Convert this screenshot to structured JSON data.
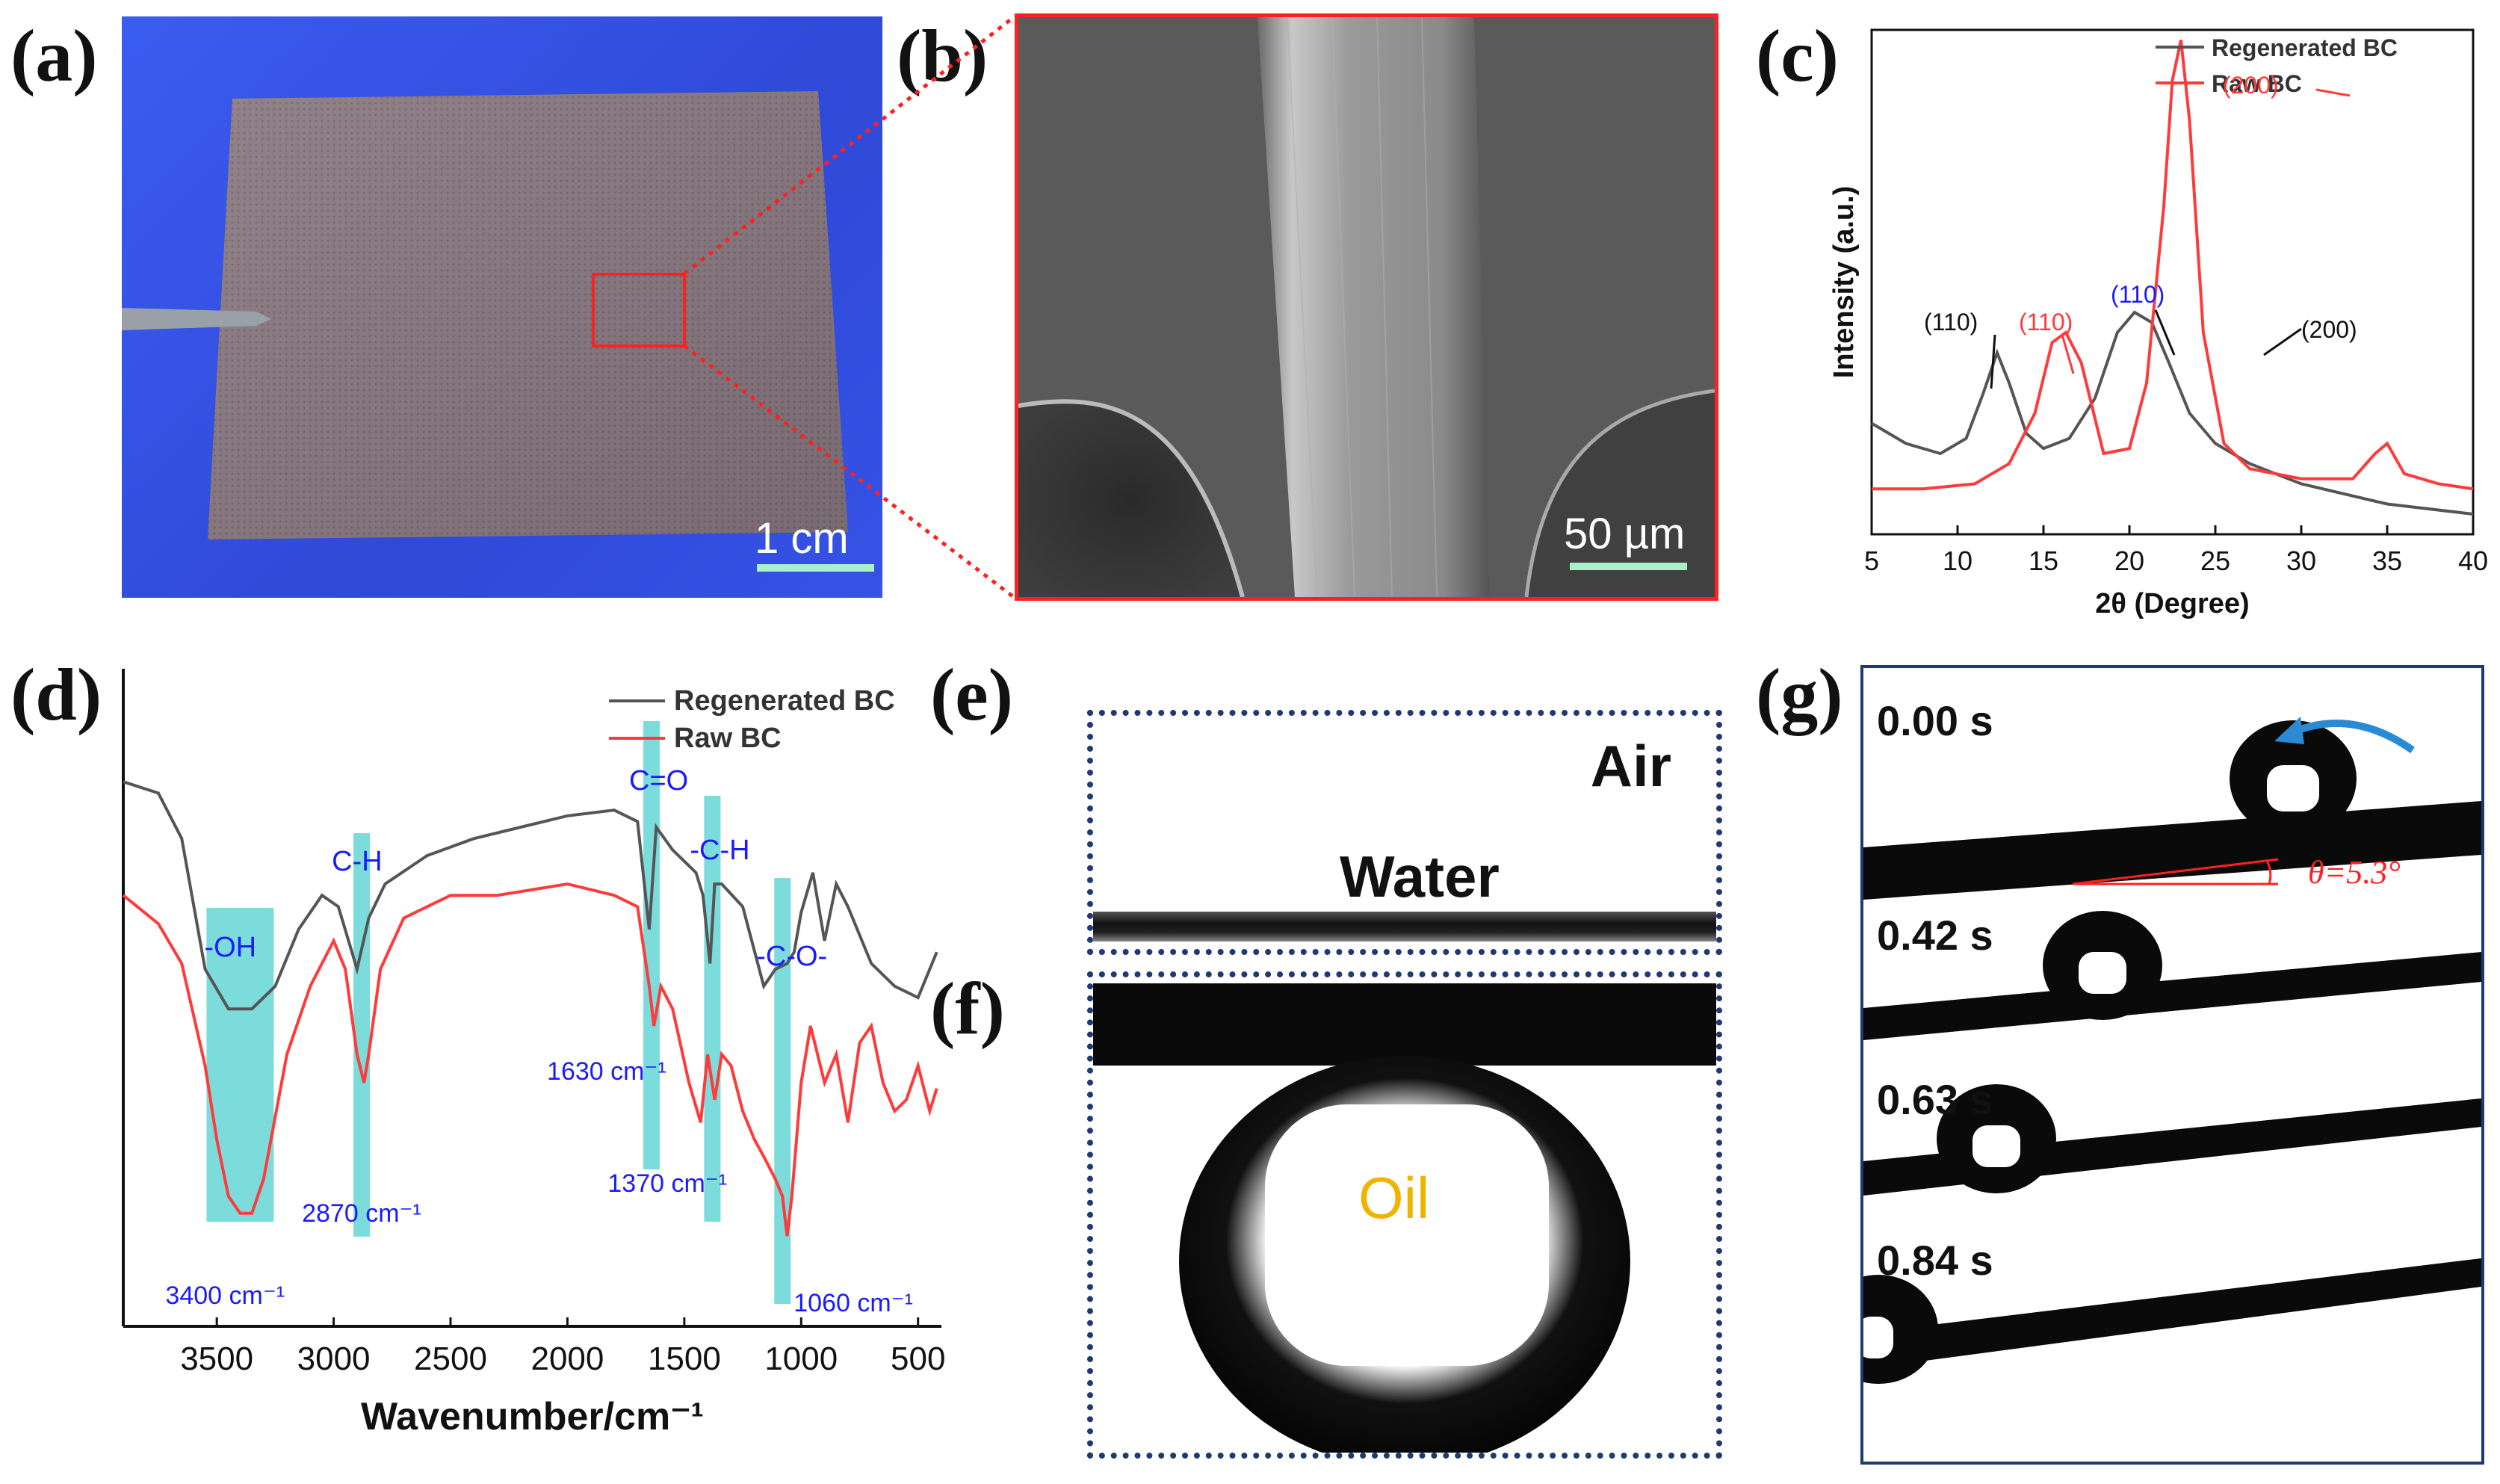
{
  "panels": {
    "a": {
      "label": "(a)",
      "scale_bar": "1 cm"
    },
    "b": {
      "label": "(b)",
      "scale_bar": "50 µm"
    },
    "c": {
      "label": "(c)"
    },
    "d": {
      "label": "(d)"
    },
    "e": {
      "label": "(e)",
      "air": "Air",
      "water": "Water"
    },
    "f": {
      "label": "(f)",
      "oil": "Oil"
    },
    "g": {
      "label": "(g)",
      "times": [
        "0.00 s",
        "0.42 s",
        "0.63 s",
        "0.84 s"
      ],
      "angle": "θ=5.3°"
    }
  },
  "colors": {
    "regenerated": "#555555",
    "raw": "#ff3a3a",
    "band": "#4fd0cf",
    "annot_blue": "#1a1aff",
    "frame_blue": "#1f3a73",
    "oil": "#f0b400",
    "sky": "#2f4fe0"
  },
  "chart_data": [
    {
      "type": "line",
      "id": "xrd",
      "title": "",
      "xlabel": "2θ (Degree)",
      "ylabel": "Intensity (a.u.)",
      "xlim": [
        5,
        40
      ],
      "ylim": [
        0,
        100
      ],
      "xticks": [
        5,
        10,
        15,
        20,
        25,
        30,
        35,
        40
      ],
      "legend": [
        "Regenerated BC",
        "Raw BC"
      ],
      "series": [
        {
          "name": "Regenerated BC",
          "x": [
            5,
            7,
            9,
            10.5,
            11.5,
            12.3,
            13,
            14,
            15,
            16.5,
            18,
            19.3,
            20.3,
            21.3,
            22.3,
            23.5,
            25,
            27,
            30,
            35,
            40
          ],
          "y": [
            22,
            18,
            16,
            19,
            28,
            36,
            30,
            20,
            17,
            19,
            27,
            40,
            44,
            42,
            34,
            24,
            18,
            14,
            10,
            6,
            4
          ]
        },
        {
          "name": "Raw BC",
          "x": [
            5,
            8,
            11,
            13,
            14.5,
            15.5,
            16.3,
            17.2,
            18.5,
            20,
            21,
            22,
            22.5,
            23,
            23.5,
            24.3,
            25.5,
            27,
            30,
            33,
            34.3,
            35,
            36,
            38,
            40
          ],
          "y": [
            9,
            9,
            10,
            14,
            24,
            38,
            40,
            34,
            16,
            17,
            30,
            65,
            90,
            98,
            82,
            40,
            18,
            13,
            11,
            11,
            16,
            18,
            12,
            10,
            9
          ]
        }
      ],
      "annotations": [
        "(110)",
        "(110)",
        "(110)",
        "(200)",
        "(200)"
      ],
      "overline_hint": "1",
      "annotation_values": {
        "black_left": "(110)",
        "red_left": "(110)",
        "blue": "(110)",
        "black_right": "(200)",
        "red_top": "(200)"
      }
    },
    {
      "type": "line",
      "id": "ftir",
      "xlabel": "Wavenumber/cm⁻¹",
      "ylabel": "",
      "xlim": [
        3900,
        400
      ],
      "ylim": [
        0,
        100
      ],
      "xticks": [
        3500,
        3000,
        2500,
        2000,
        1500,
        1000,
        500
      ],
      "legend": [
        "Regenerated BC",
        "Raw BC"
      ],
      "series": [
        {
          "name": "Regenerated BC",
          "x": [
            3900,
            3750,
            3650,
            3550,
            3450,
            3350,
            3250,
            3150,
            3050,
            2980,
            2900,
            2850,
            2780,
            2600,
            2400,
            2200,
            2000,
            1800,
            1700,
            1650,
            1620,
            1550,
            1450,
            1420,
            1390,
            1370,
            1340,
            1250,
            1160,
            1110,
            1060,
            1030,
            1000,
            950,
            900,
            850,
            800,
            700,
            600,
            500,
            420
          ],
          "y": [
            88,
            86,
            78,
            55,
            48,
            48,
            52,
            62,
            68,
            66,
            55,
            64,
            70,
            75,
            78,
            80,
            82,
            83,
            81,
            62,
            80,
            76,
            72,
            68,
            56,
            70,
            70,
            66,
            52,
            55,
            56,
            58,
            65,
            72,
            60,
            70,
            66,
            56,
            52,
            50,
            58
          ]
        },
        {
          "name": "Raw BC",
          "x": [
            3900,
            3750,
            3650,
            3550,
            3500,
            3450,
            3400,
            3350,
            3300,
            3200,
            3100,
            3000,
            2950,
            2900,
            2870,
            2850,
            2800,
            2700,
            2500,
            2300,
            2000,
            1800,
            1700,
            1650,
            1630,
            1600,
            1550,
            1480,
            1430,
            1400,
            1370,
            1340,
            1300,
            1250,
            1200,
            1160,
            1110,
            1080,
            1060,
            1040,
            1000,
            960,
            900,
            850,
            800,
            750,
            700,
            650,
            600,
            550,
            500,
            450,
            420
          ],
          "y": [
            68,
            63,
            56,
            38,
            25,
            15,
            12,
            12,
            18,
            40,
            52,
            60,
            55,
            40,
            35,
            40,
            55,
            64,
            68,
            68,
            70,
            68,
            66,
            52,
            45,
            52,
            48,
            35,
            28,
            40,
            32,
            40,
            38,
            30,
            25,
            22,
            18,
            15,
            8,
            15,
            35,
            45,
            35,
            40,
            28,
            42,
            45,
            35,
            30,
            32,
            38,
            30,
            34
          ]
        }
      ],
      "bands": [
        {
          "label": "-OH",
          "wavenumber_label": "3400 cm⁻¹",
          "center": 3400
        },
        {
          "label": "C-H",
          "wavenumber_label": "2870 cm⁻¹",
          "center": 2880
        },
        {
          "label": "C=O",
          "wavenumber_label": "1630 cm⁻¹",
          "center": 1640
        },
        {
          "label": "-C-H",
          "wavenumber_label": "1370 cm⁻¹",
          "center": 1380
        },
        {
          "label": "-C-O-",
          "wavenumber_label": "1060 cm⁻¹",
          "center": 1080
        }
      ]
    }
  ]
}
